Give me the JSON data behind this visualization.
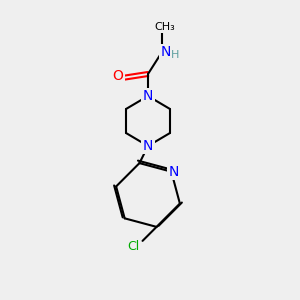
{
  "bg_color": "#efefef",
  "bond_color": "#000000",
  "bond_lw": 1.5,
  "atom_colors": {
    "N": "#0000ff",
    "O": "#ff0000",
    "Cl": "#00aa00",
    "H": "#5fa0a0",
    "C": "#000000"
  },
  "font_size_atom": 9,
  "font_size_label": 9
}
